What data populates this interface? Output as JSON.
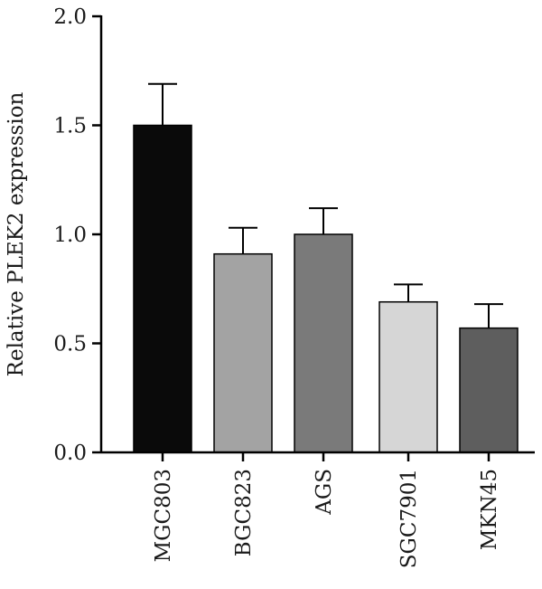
{
  "chart_data": {
    "type": "bar",
    "title": "",
    "xlabel": "",
    "ylabel": "Relative PLEK2 expression",
    "ylim": [
      0,
      2.0
    ],
    "yticks": [
      "0.0",
      "0.5",
      "1.0",
      "1.5",
      "2.0"
    ],
    "categories": [
      "MGC803",
      "BGC823",
      "AGS",
      "SGC7901",
      "MKN45"
    ],
    "values": [
      1.5,
      0.91,
      1.0,
      0.69,
      0.57
    ],
    "errors": [
      0.19,
      0.12,
      0.12,
      0.08,
      0.11
    ],
    "colors": [
      "#0a0a0a",
      "#a3a3a3",
      "#7a7a7a",
      "#d6d6d6",
      "#5e5e5e"
    ],
    "grid": false,
    "legend": "none"
  }
}
